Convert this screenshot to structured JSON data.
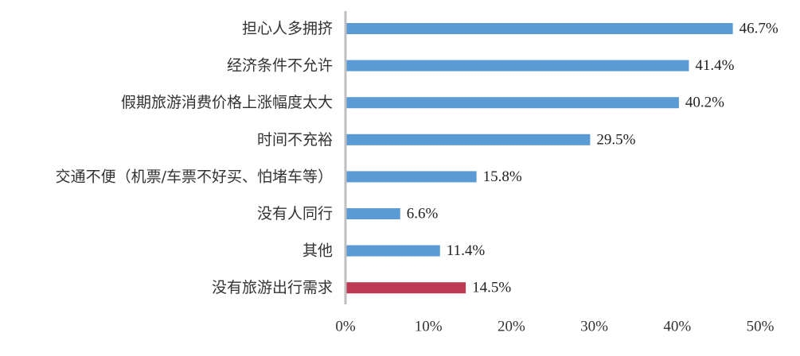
{
  "chart_data": {
    "type": "bar",
    "orientation": "horizontal",
    "categories": [
      "担心人多拥挤",
      "经济条件不允许",
      "假期旅游消费价格上涨幅度太大",
      "时间不充裕",
      "交通不便（机票/车票不好买、怕堵车等）",
      "没有人同行",
      "其他",
      "没有旅游出行需求"
    ],
    "values": [
      46.7,
      41.4,
      40.2,
      29.5,
      15.8,
      6.6,
      11.4,
      14.5
    ],
    "value_labels": [
      "46.7%",
      "41.4%",
      "40.2%",
      "29.5%",
      "15.8%",
      "6.6%",
      "11.4%",
      "14.5%"
    ],
    "bar_colors": [
      "#5b9bd5",
      "#5b9bd5",
      "#5b9bd5",
      "#5b9bd5",
      "#5b9bd5",
      "#5b9bd5",
      "#5b9bd5",
      "#be3a52"
    ],
    "xlim": [
      0,
      50
    ],
    "xticks": [
      0,
      10,
      20,
      30,
      40,
      50
    ],
    "xtick_labels": [
      "0%",
      "10%",
      "20%",
      "30%",
      "40%",
      "50%"
    ],
    "grid": false,
    "legend": "none",
    "axis_color": "#bfbfbf"
  }
}
